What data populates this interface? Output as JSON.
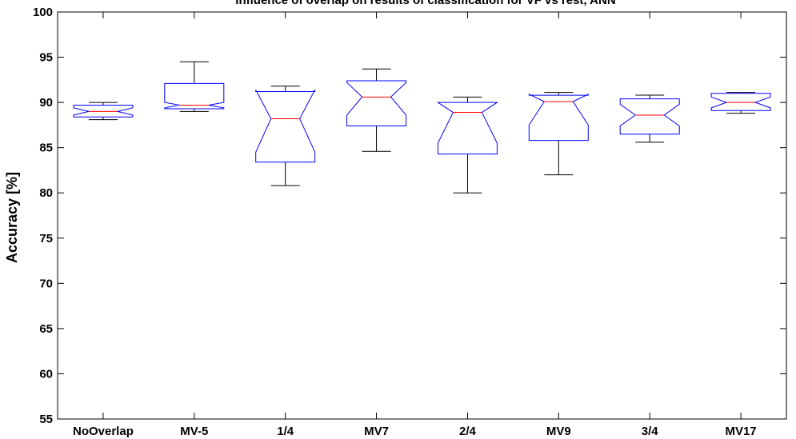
{
  "chart_data": {
    "type": "box",
    "title": "Influence of overlap on results of classification for VF vs rest, ANN",
    "xlabel": "",
    "ylabel": "Accuracy [%]",
    "ylim": [
      55,
      100
    ],
    "yticks": [
      "55",
      "60",
      "65",
      "70",
      "75",
      "80",
      "85",
      "90",
      "95",
      "100"
    ],
    "grid": false,
    "notched": true,
    "colors": {
      "box": "#0000ff",
      "median": "#ff0000",
      "whisker": "#000000",
      "axis": "#000000"
    },
    "categories": [
      "NoOverlap",
      "MV-5",
      "1/4",
      "MV7",
      "2/4",
      "MV9",
      "3/4",
      "MV17"
    ],
    "boxes": [
      {
        "min": 88.1,
        "q1": 88.4,
        "median": 89.0,
        "q3": 89.7,
        "max": 90.0,
        "notch_lo": 88.6,
        "notch_hi": 89.4
      },
      {
        "min": 89.0,
        "q1": 89.3,
        "median": 89.7,
        "q3": 92.1,
        "max": 94.5,
        "notch_lo": 89.4,
        "notch_hi": 90.0
      },
      {
        "min": 80.8,
        "q1": 83.4,
        "median": 88.2,
        "q3": 91.2,
        "max": 91.8,
        "notch_lo": 84.5,
        "notch_hi": 91.4
      },
      {
        "min": 84.6,
        "q1": 87.4,
        "median": 90.6,
        "q3": 92.4,
        "max": 93.7,
        "notch_lo": 88.6,
        "notch_hi": 92.2
      },
      {
        "min": 80.0,
        "q1": 84.3,
        "median": 88.9,
        "q3": 90.0,
        "max": 90.6,
        "notch_lo": 85.5,
        "notch_hi": 90.0
      },
      {
        "min": 82.0,
        "q1": 85.8,
        "median": 90.1,
        "q3": 90.8,
        "max": 91.1,
        "notch_lo": 87.5,
        "notch_hi": 90.9
      },
      {
        "min": 85.6,
        "q1": 86.5,
        "median": 88.6,
        "q3": 90.4,
        "max": 90.8,
        "notch_lo": 87.4,
        "notch_hi": 89.8
      },
      {
        "min": 88.8,
        "q1": 89.1,
        "median": 90.0,
        "q3": 91.0,
        "max": 91.1,
        "notch_lo": 89.4,
        "notch_hi": 90.6
      }
    ]
  }
}
